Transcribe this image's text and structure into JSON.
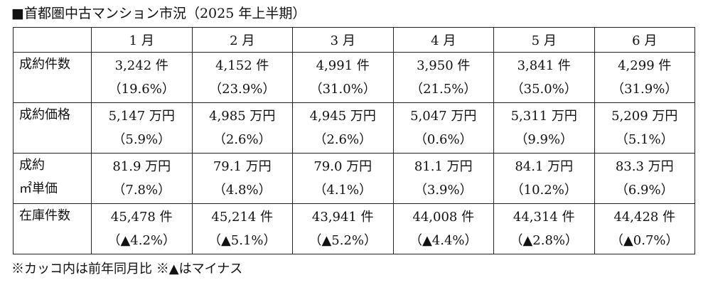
{
  "title": "■首都圏中古マンション市況（2025 年上半期）",
  "table": {
    "months": [
      "1 月",
      "2 月",
      "3 月",
      "4 月",
      "5 月",
      "6 月"
    ],
    "rows": [
      {
        "label_lines": [
          "成約件数"
        ],
        "cells": [
          {
            "value": "3,242 件",
            "change": "（19.6%）"
          },
          {
            "value": "4,152 件",
            "change": "（23.9%）"
          },
          {
            "value": "4,991 件",
            "change": "（31.0%）"
          },
          {
            "value": "3,950 件",
            "change": "（21.5%）"
          },
          {
            "value": "3,841 件",
            "change": "（35.0%）"
          },
          {
            "value": "4,299 件",
            "change": "（31.9%）"
          }
        ]
      },
      {
        "label_lines": [
          "成約価格"
        ],
        "cells": [
          {
            "value": "5,147 万円",
            "change": "（5.9%）"
          },
          {
            "value": "4,985 万円",
            "change": "（2.6%）"
          },
          {
            "value": "4,945 万円",
            "change": "（2.6%）"
          },
          {
            "value": "5,047 万円",
            "change": "（0.6%）"
          },
          {
            "value": "5,311 万円",
            "change": "（9.9%）"
          },
          {
            "value": "5,209 万円",
            "change": "（5.1%）"
          }
        ]
      },
      {
        "label_lines": [
          "成約",
          "㎡単価"
        ],
        "cells": [
          {
            "value": "81.9 万円",
            "change": "（7.8%）"
          },
          {
            "value": "79.1 万円",
            "change": "（4.8%）"
          },
          {
            "value": "79.0 万円",
            "change": "（4.1%）"
          },
          {
            "value": "81.1 万円",
            "change": "（3.9%）"
          },
          {
            "value": "84.1 万円",
            "change": "（10.2%）"
          },
          {
            "value": "83.3 万円",
            "change": "（6.9%）"
          }
        ]
      },
      {
        "label_lines": [
          "在庫件数"
        ],
        "cells": [
          {
            "value": "45,478 件",
            "change": "（▲4.2%）"
          },
          {
            "value": "45,214 件",
            "change": "（▲5.1%）"
          },
          {
            "value": "43,941 件",
            "change": "（▲5.2%）"
          },
          {
            "value": "44,008 件",
            "change": "（▲4.4%）"
          },
          {
            "value": "44,314 件",
            "change": "（▲2.8%）"
          },
          {
            "value": "44,428 件",
            "change": "（▲0.7%）"
          }
        ]
      }
    ]
  },
  "note": "※カッコ内は前年同月比 ※▲はマイナス"
}
